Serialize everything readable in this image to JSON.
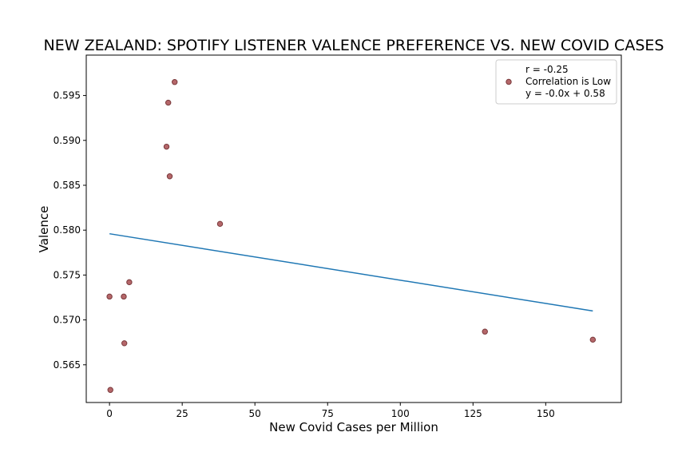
{
  "chart_data": {
    "type": "scatter",
    "title": "NEW ZEALAND: SPOTIFY LISTENER VALENCE PREFERENCE VS. NEW COVID CASES",
    "xlabel": "New Covid Cases per Million",
    "ylabel": "Valence",
    "xlim": [
      -8,
      176
    ],
    "ylim": [
      0.5608,
      0.5995
    ],
    "x_ticks": [
      0,
      25,
      50,
      75,
      100,
      125,
      150
    ],
    "x_tick_labels": [
      "0",
      "25",
      "50",
      "75",
      "100",
      "125",
      "150"
    ],
    "y_ticks": [
      0.565,
      0.57,
      0.575,
      0.58,
      0.585,
      0.59,
      0.595
    ],
    "y_tick_labels": [
      "0.565",
      "0.570",
      "0.575",
      "0.580",
      "0.585",
      "0.590",
      "0.595"
    ],
    "grid": false,
    "series": [
      {
        "kind": "scatter",
        "color": "#b5676a",
        "edge_color": "#7a3a3c",
        "points": [
          {
            "x": 0.0,
            "y": 0.5726
          },
          {
            "x": 0.3,
            "y": 0.5622
          },
          {
            "x": 4.9,
            "y": 0.5726
          },
          {
            "x": 5.1,
            "y": 0.5674
          },
          {
            "x": 6.8,
            "y": 0.5742
          },
          {
            "x": 19.6,
            "y": 0.5893
          },
          {
            "x": 20.2,
            "y": 0.5942
          },
          {
            "x": 20.7,
            "y": 0.586
          },
          {
            "x": 22.4,
            "y": 0.5965
          },
          {
            "x": 38.0,
            "y": 0.5807
          },
          {
            "x": 129.1,
            "y": 0.5687
          },
          {
            "x": 166.2,
            "y": 0.5678
          }
        ]
      },
      {
        "kind": "line",
        "color": "#1f77b4",
        "points": [
          {
            "x": 0.0,
            "y": 0.5796
          },
          {
            "x": 166.2,
            "y": 0.571
          }
        ]
      }
    ],
    "legend": {
      "placement": "upper-right",
      "lines": [
        "r = -0.25",
        "Correlation is Low",
        "y = -0.0x + 0.58"
      ]
    }
  }
}
